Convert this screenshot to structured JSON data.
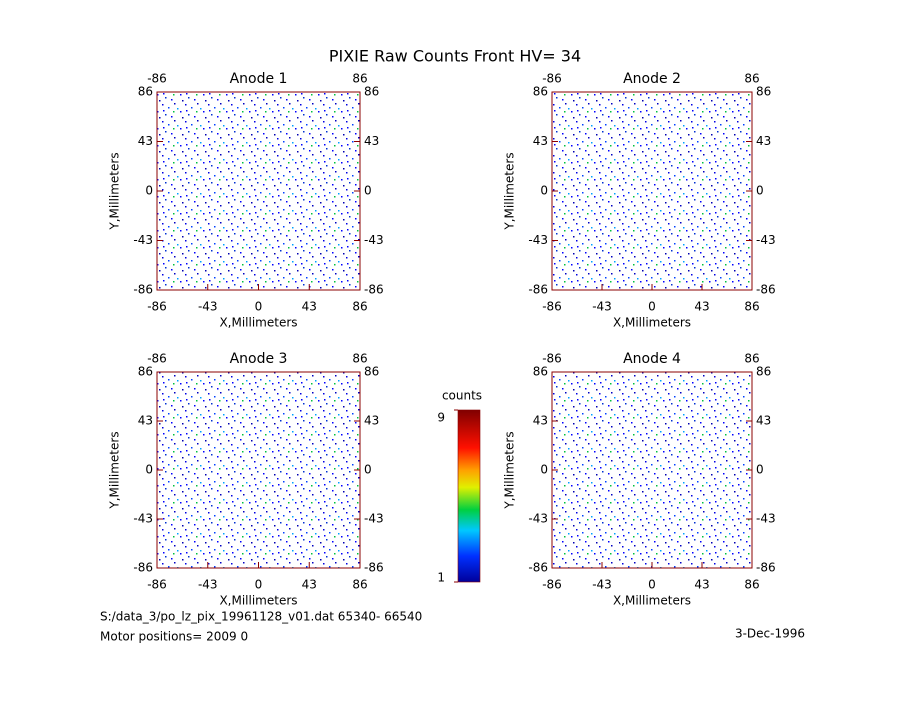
{
  "title": "PIXIE Raw Counts Front HV= 34",
  "chart_data": [
    {
      "type": "heatmap",
      "title": "Anode 1",
      "x_label": "X,Millimeters",
      "y_label": "Y,Millimeters",
      "xlim": [
        -86,
        86
      ],
      "ylim": [
        -86,
        86
      ],
      "xticks": [
        -86,
        -43,
        0,
        43,
        86
      ],
      "yticks": [
        -86,
        -43,
        0,
        43,
        86
      ],
      "x2ticks": [
        -86,
        86
      ],
      "y2ticks": [
        -86,
        -43,
        0,
        43,
        86
      ]
    },
    {
      "type": "heatmap",
      "title": "Anode 2",
      "x_label": "X,Millimeters",
      "y_label": "Y,Millimeters",
      "xlim": [
        -86,
        86
      ],
      "ylim": [
        -86,
        86
      ],
      "xticks": [
        -86,
        -43,
        0,
        43,
        86
      ],
      "yticks": [
        -86,
        -43,
        0,
        43,
        86
      ],
      "x2ticks": [
        -86,
        86
      ],
      "y2ticks": [
        -86,
        -43,
        0,
        43,
        86
      ]
    },
    {
      "type": "heatmap",
      "title": "Anode 3",
      "x_label": "X,Millimeters",
      "y_label": "Y,Millimeters",
      "xlim": [
        -86,
        86
      ],
      "ylim": [
        -86,
        86
      ],
      "xticks": [
        -86,
        -43,
        0,
        43,
        86
      ],
      "yticks": [
        -86,
        -43,
        0,
        43,
        86
      ],
      "x2ticks": [
        -86,
        86
      ],
      "y2ticks": [
        -86,
        -43,
        0,
        43,
        86
      ]
    },
    {
      "type": "heatmap",
      "title": "Anode 4",
      "x_label": "X,Millimeters",
      "y_label": "Y,Millimeters",
      "xlim": [
        -86,
        86
      ],
      "ylim": [
        -86,
        86
      ],
      "xticks": [
        -86,
        -43,
        0,
        43,
        86
      ],
      "yticks": [
        -86,
        -43,
        0,
        43,
        86
      ],
      "x2ticks": [
        -86,
        86
      ],
      "y2ticks": [
        -86,
        -43,
        0,
        43,
        86
      ]
    }
  ],
  "colorbar": {
    "label": "counts",
    "lim": [
      1,
      9
    ],
    "ticks": [
      1,
      9
    ]
  },
  "footer": {
    "file": "S:/data_3/po_lz_pix_19961128_v01.dat   65340- 66540",
    "motor": "Motor positions= 2009 0",
    "date": "3-Dec-1996"
  }
}
